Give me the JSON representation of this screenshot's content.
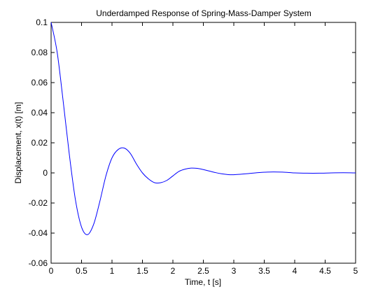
{
  "chart_data": {
    "type": "line",
    "title": "Underdamped Response of Spring-Mass-Damper System",
    "xlabel": "Time, t [s]",
    "ylabel": "Displacement, x(t) [m]",
    "xlim": [
      0,
      5
    ],
    "ylim": [
      -0.06,
      0.1
    ],
    "x_ticks": [
      0,
      0.5,
      1,
      1.5,
      2,
      2.5,
      3,
      3.5,
      4,
      4.5,
      5
    ],
    "x_tick_labels": [
      "0",
      "0.5",
      "1",
      "1.5",
      "2",
      "2.5",
      "3",
      "3.5",
      "4",
      "4.5",
      "5"
    ],
    "y_ticks": [
      -0.06,
      -0.04,
      -0.02,
      0,
      0.02,
      0.04,
      0.06,
      0.08,
      0.1
    ],
    "y_tick_labels": [
      "-0.06",
      "-0.04",
      "-0.02",
      "0",
      "0.02",
      "0.04",
      "0.06",
      "0.08",
      "0.1"
    ],
    "grid": false,
    "legend": "none",
    "series": [
      {
        "color": "#0000ff",
        "x": [
          0,
          0.1,
          0.2,
          0.3,
          0.4,
          0.5,
          0.6,
          0.7,
          0.8,
          0.9,
          1.0,
          1.1,
          1.2,
          1.3,
          1.4,
          1.5,
          1.6,
          1.7,
          1.8,
          1.9,
          2.0,
          2.1,
          2.2,
          2.3,
          2.4,
          2.5,
          2.6,
          2.7,
          2.8,
          2.9,
          3.0,
          3.2,
          3.4,
          3.6,
          3.8,
          4.0,
          4.2,
          4.4,
          4.6,
          4.8,
          5.0
        ],
        "y": [
          0.1,
          0.08,
          0.047,
          0.012,
          -0.018,
          -0.036,
          -0.041,
          -0.034,
          -0.019,
          -0.002,
          0.01,
          0.0155,
          0.0165,
          0.013,
          0.006,
          0.0,
          -0.004,
          -0.0065,
          -0.0065,
          -0.005,
          -0.002,
          0.001,
          0.0025,
          0.0032,
          0.003,
          0.0022,
          0.0012,
          0.0002,
          -0.0006,
          -0.0011,
          -0.0012,
          -0.0006,
          0.0002,
          0.0006,
          0.0005,
          0.0,
          -0.0002,
          -0.0002,
          0.0,
          0.0001,
          0.0
        ]
      }
    ]
  }
}
